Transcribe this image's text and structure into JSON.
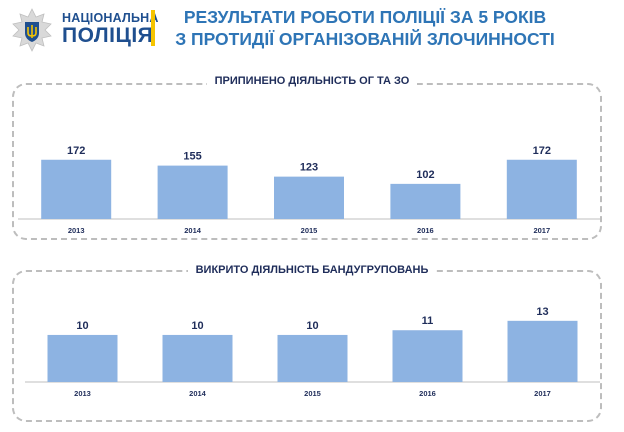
{
  "logo": {
    "line1": "НАЦІОНАЛЬНА",
    "line2": "ПОЛІЦІЯ"
  },
  "header": {
    "title_line1": "РЕЗУЛЬТАТИ РОБОТИ ПОЛІЦІЇ ЗА 5 РОКІВ",
    "title_line2": "З ПРОТИДІЇ ОРГАНІЗОВАНІЙ ЗЛОЧИННОСТІ"
  },
  "colors": {
    "bar": "#8db3e2",
    "axis": "#bfbfbf",
    "title": "#2e75b6",
    "text": "#1f2d5a"
  },
  "chart_data": [
    {
      "type": "bar",
      "title": "ПРИПИНЕНО  ДІЯЛЬНІСТЬ ОГ ТА ЗО",
      "categories": [
        "2013",
        "2014",
        "2015",
        "2016",
        "2017"
      ],
      "values": [
        172,
        155,
        123,
        102,
        172
      ],
      "ylim": [
        0,
        180
      ]
    },
    {
      "type": "bar",
      "title": "ВИКРИТО ДІЯЛЬНІСТЬ  БАНДУГРУПОВАНЬ",
      "categories": [
        "2013",
        "2014",
        "2015",
        "2016",
        "2017"
      ],
      "values": [
        10,
        10,
        10,
        11,
        13
      ],
      "ylim": [
        0,
        13.6
      ]
    }
  ]
}
